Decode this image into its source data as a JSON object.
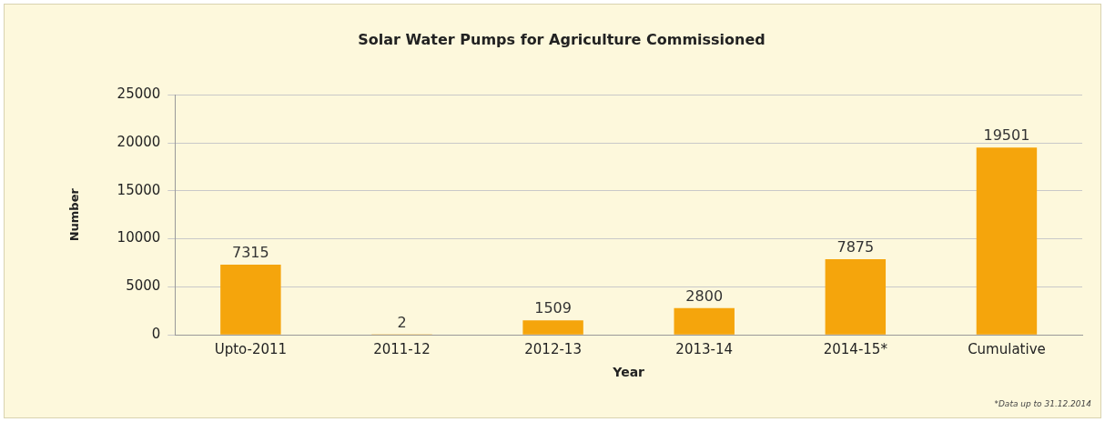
{
  "chart_data": {
    "type": "bar",
    "title": "Solar Water Pumps for Agriculture Commissioned",
    "xlabel": "Year",
    "ylabel": "Number",
    "categories": [
      "Upto-2011",
      "2011-12",
      "2012-13",
      "2013-14",
      "2014-15*",
      "Cumulative"
    ],
    "values": [
      7315,
      2,
      1509,
      2800,
      7875,
      19501
    ],
    "color": "#f5a50c",
    "ylim": [
      0,
      25000
    ],
    "yticks": [
      0,
      5000,
      10000,
      15000,
      20000,
      25000
    ],
    "grid": "y",
    "data_labels": true,
    "annotations": [
      "*Data up to 31.12.2014"
    ]
  }
}
